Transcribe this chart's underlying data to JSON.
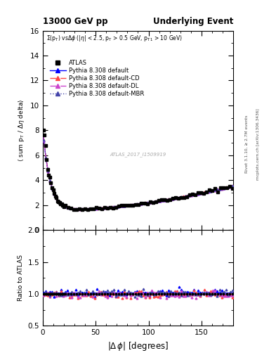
{
  "title_left": "13000 GeV pp",
  "title_right": "Underlying Event",
  "annotation": "Σ(p_{T}) vs Δϕ (|η| < 2.5, p_{T} > 0.5 GeV, p_{T1} > 10 GeV)",
  "watermark": "ATLAS_2017_I1509919",
  "right_label1": "Rivet 3.1.10, ≥ 2.7M events",
  "right_label2": "mcplots.cern.ch [arXiv:1306.3436]",
  "ylabel_main": "⟨ sum p_{T} / Δη delta⟩",
  "ylabel_ratio": "Ratio to ATLAS",
  "xlabel": "|Δ ϕ| [degrees]",
  "ylim_main": [
    0,
    16
  ],
  "ylim_ratio": [
    0.5,
    2.0
  ],
  "xlim": [
    0,
    180
  ],
  "yticks_main": [
    0,
    2,
    4,
    6,
    8,
    10,
    12,
    14,
    16
  ],
  "yticks_ratio": [
    0.5,
    1.0,
    1.5,
    2.0
  ],
  "xticks": [
    0,
    50,
    100,
    150
  ],
  "legend_entries": [
    "ATLAS",
    "Pythia 8.308 default",
    "Pythia 8.308 default-CD",
    "Pythia 8.308 default-DL",
    "Pythia 8.308 default-MBR"
  ],
  "colors": {
    "atlas": "#000000",
    "default": "#0000ff",
    "cd": "#ff4444",
    "dl": "#cc44cc",
    "mbr": "#4444aa"
  },
  "linestyles": {
    "default": "-",
    "cd": "-.",
    "dl": "-.",
    "mbr": ":"
  },
  "background_color": "#ffffff"
}
